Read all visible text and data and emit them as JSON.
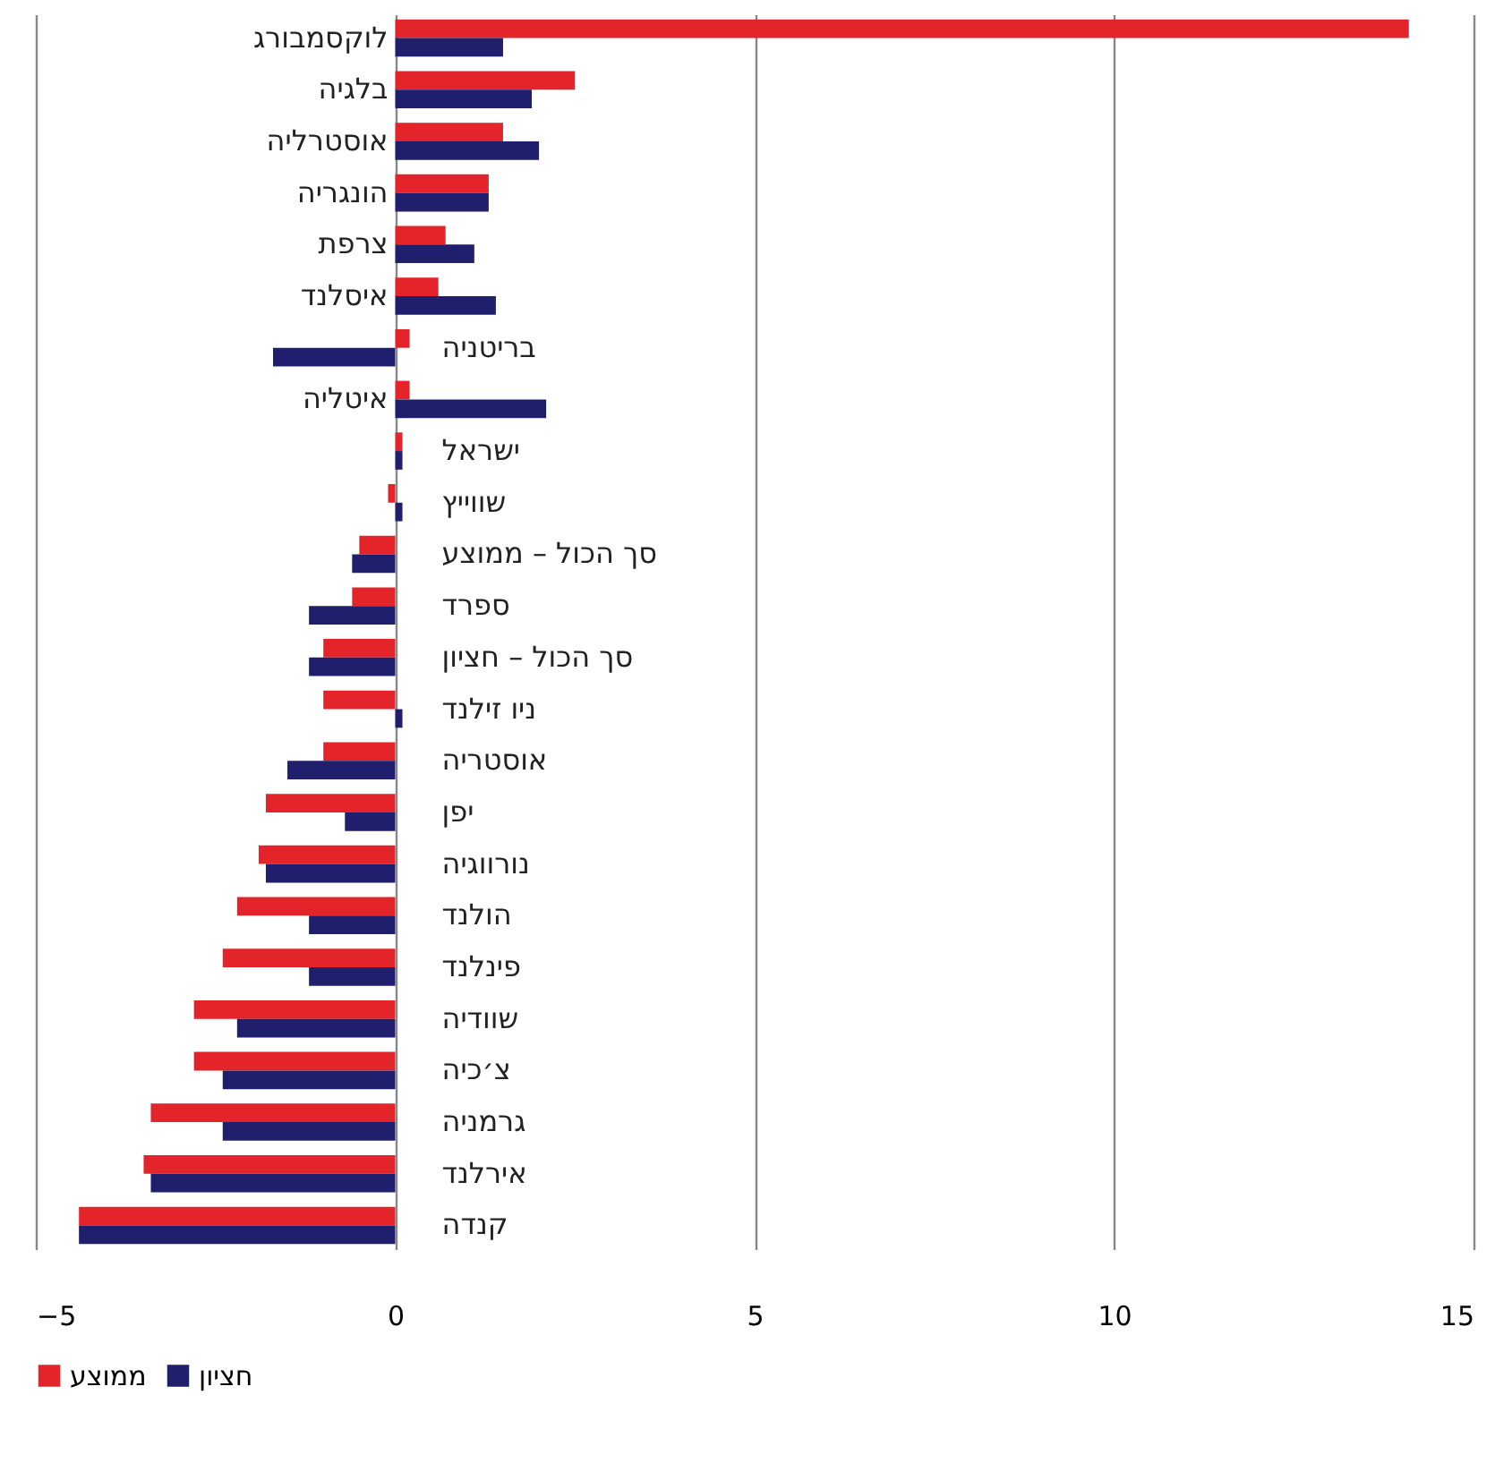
{
  "chart_data": {
    "type": "bar",
    "orientation": "horizontal",
    "categories": [
      "לוקסמבורג",
      "בלגיה",
      "אוסטרליה",
      "הונגריה",
      "צרפת",
      "איסלנד",
      "בריטניה",
      "איטליה",
      "ישראל",
      "שווייץ",
      "סך הכול – ממוצע",
      "ספרד",
      "סך הכול – חציון",
      "ניו זילנד",
      "אוסטריה",
      "יפן",
      "נורווגיה",
      "הולנד",
      "פינלנד",
      "שוודיה",
      "צ׳כיה",
      "גרמניה",
      "אירלנד",
      "קנדה"
    ],
    "series": [
      {
        "name": "ממוצע",
        "color": "#e3242b",
        "values": [
          14.1,
          2.5,
          1.5,
          1.3,
          0.7,
          0.6,
          0.2,
          0.2,
          0.1,
          -0.1,
          -0.5,
          -0.6,
          -1.0,
          -1.0,
          -1.0,
          -1.8,
          -1.9,
          -2.2,
          -2.4,
          -2.8,
          -2.8,
          -3.4,
          -3.5,
          -4.4
        ]
      },
      {
        "name": "חציון",
        "color": "#1f1f6e",
        "values": [
          1.5,
          1.9,
          2.0,
          1.3,
          1.1,
          1.4,
          -1.7,
          2.1,
          0.1,
          0.1,
          -0.6,
          -1.2,
          -1.2,
          0.1,
          -1.5,
          -0.7,
          -1.8,
          -1.2,
          -1.2,
          -2.2,
          -2.4,
          -2.4,
          -3.4,
          -4.4
        ]
      }
    ],
    "xlim": [
      -5,
      15
    ],
    "xticks": [
      -5,
      0,
      5,
      10,
      15
    ],
    "grid": "x",
    "legend": "bottom"
  }
}
